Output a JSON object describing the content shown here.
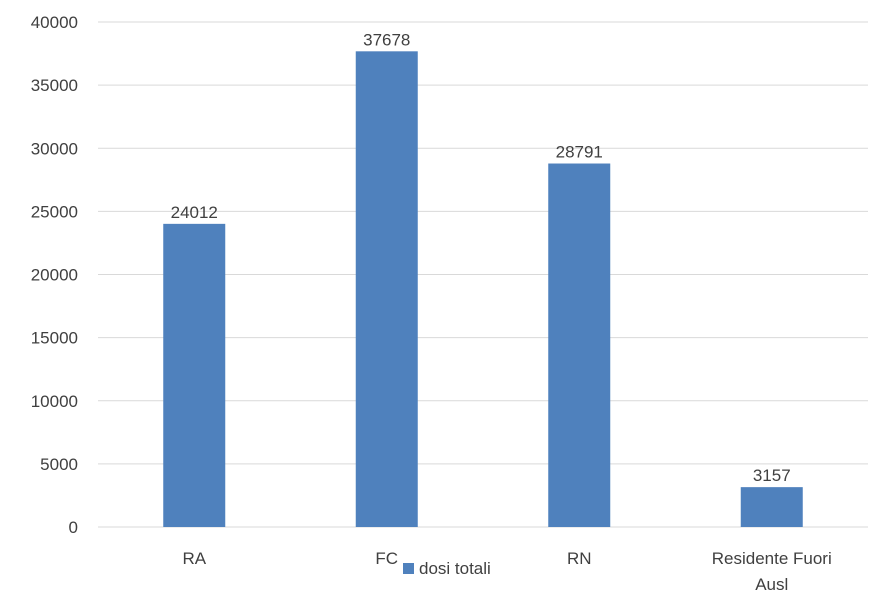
{
  "chart_data": {
    "type": "bar",
    "categories": [
      "RA",
      "FC",
      "RN",
      "Residente Fuori Ausl"
    ],
    "category_lines": [
      [
        "RA"
      ],
      [
        "FC"
      ],
      [
        "RN"
      ],
      [
        "Residente Fuori",
        "Ausl"
      ]
    ],
    "series": [
      {
        "name": "dosi totali",
        "values": [
          24012,
          37678,
          28791,
          3157
        ]
      }
    ],
    "ylim": [
      0,
      40000
    ],
    "yticks": [
      0,
      5000,
      10000,
      15000,
      20000,
      25000,
      30000,
      35000,
      40000
    ],
    "data_labels": true,
    "grid": true,
    "legend_position": "bottom",
    "title": "",
    "xlabel": "",
    "ylabel": ""
  },
  "colors": {
    "bar": "#4F81BD",
    "grid": "#D9D9D9",
    "text": "#404040"
  }
}
